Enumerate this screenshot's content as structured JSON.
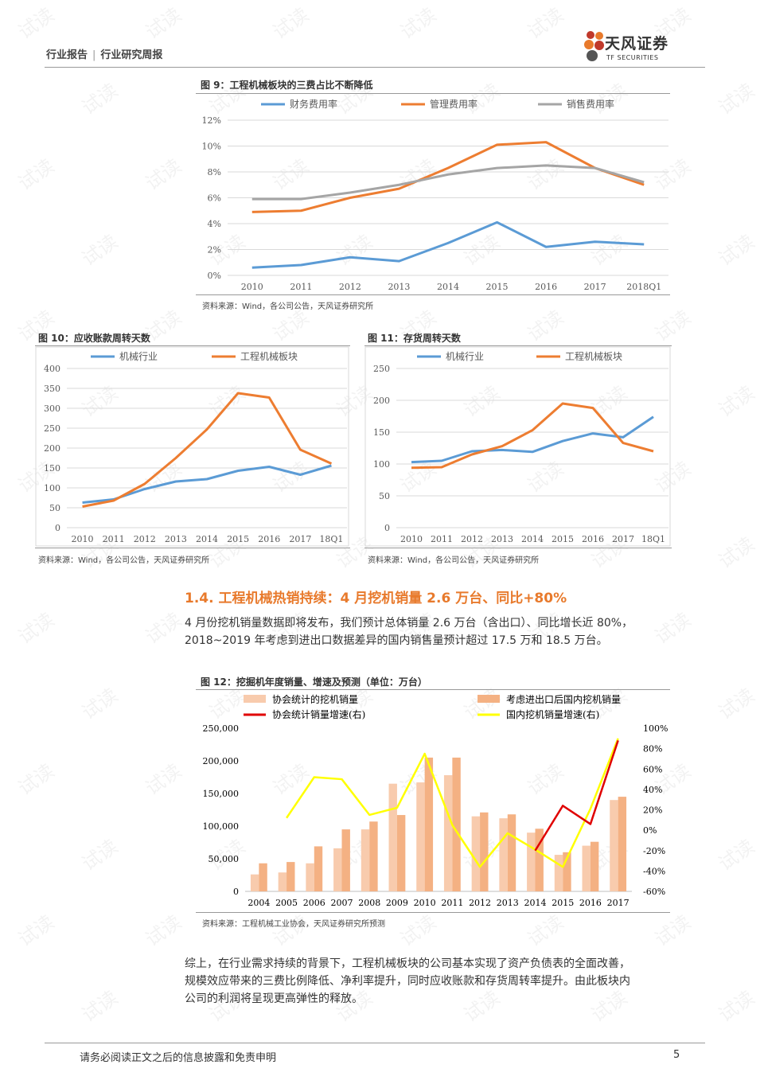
{
  "header": {
    "report_type": "行业报告",
    "report_name": "行业研究周报",
    "logo_cn": "天风证券",
    "logo_en": "TF SECURITIES"
  },
  "watermark": "试读",
  "figures": {
    "fig9": {
      "title": "图 9：工程机械板块的三费占比不断降低",
      "source": "资料来源：Wind，各公司公告，天风证券研究所"
    },
    "fig10": {
      "title": "图 10：应收账款周转天数",
      "source": "资料来源：Wind，各公司公告，天风证券研究所"
    },
    "fig11": {
      "title": "图 11：存货周转天数",
      "source": "资料来源：Wind，各公司公告，天风证券研究所"
    },
    "fig12": {
      "title": "图 12：挖掘机年度销量、增速及预测（单位：万台）",
      "source": "资料来源：工程机械工业协会，天风证券研究所预测"
    }
  },
  "section": {
    "title": "1.4. 工程机械热销持续：4 月挖机销量 2.6 万台、同比+80%",
    "para1_line1": "4 月份挖机销量数据即将发布，我们预计总体销量 2.6 万台（含出口）、同比增长近 80%，",
    "para1_line2": "2018~2019 年考虑到进出口数据差异的国内销售量预计超过 17.5 万和 18.5 万台。",
    "para2_line1": "综上，在行业需求持续的背景下，工程机械板块的公司基本实现了资产负债表的全面改善，",
    "para2_line2": "规模效应带来的三费比例降低、净利率提升，同时应收账款和存货周转率提升。由此板块内",
    "para2_line3": "公司的利润将呈现更高弹性的释放。"
  },
  "footer": {
    "disclaimer": "请务必阅读正文之后的信息披露和免责申明",
    "page": "5"
  },
  "colors": {
    "blue": "#5B9BD5",
    "orange": "#ED7D31",
    "gray": "#A5A5A5",
    "accent": "#E87A2C",
    "bar_light": "#F8CBAD",
    "bar_dark": "#F4B183",
    "red": "#E00000",
    "yellow": "#FFFF00"
  },
  "chart_data": [
    {
      "id": "fig9",
      "type": "line",
      "categories": [
        "2010",
        "2011",
        "2012",
        "2013",
        "2014",
        "2015",
        "2016",
        "2017",
        "2018Q1"
      ],
      "ylim": [
        0,
        12
      ],
      "yticks": [
        "0%",
        "2%",
        "4%",
        "6%",
        "8%",
        "10%",
        "12%"
      ],
      "series": [
        {
          "name": "财务费用率",
          "color": "#5B9BD5",
          "values": [
            0.6,
            0.8,
            1.4,
            1.1,
            2.5,
            4.1,
            2.2,
            2.6,
            2.4
          ]
        },
        {
          "name": "管理费用率",
          "color": "#ED7D31",
          "values": [
            4.9,
            5.0,
            6.0,
            6.7,
            8.3,
            10.1,
            10.3,
            8.3,
            7.0
          ]
        },
        {
          "name": "销售费用率",
          "color": "#A5A5A5",
          "values": [
            5.9,
            5.9,
            6.4,
            7.0,
            7.8,
            8.3,
            8.5,
            8.3,
            7.2
          ]
        }
      ]
    },
    {
      "id": "fig10",
      "type": "line",
      "categories": [
        "2010",
        "2011",
        "2012",
        "2013",
        "2014",
        "2015",
        "2016",
        "2017",
        "18Q1"
      ],
      "ylim": [
        0,
        400
      ],
      "yticks": [
        "0",
        "50",
        "100",
        "150",
        "200",
        "250",
        "300",
        "350",
        "400"
      ],
      "series": [
        {
          "name": "机械行业",
          "color": "#5B9BD5",
          "values": [
            63,
            71,
            97,
            116,
            122,
            143,
            153,
            133,
            156
          ]
        },
        {
          "name": "工程机械板块",
          "color": "#ED7D31",
          "values": [
            53,
            68,
            110,
            175,
            247,
            338,
            327,
            196,
            161
          ]
        }
      ]
    },
    {
      "id": "fig11",
      "type": "line",
      "categories": [
        "2010",
        "2011",
        "2012",
        "2013",
        "2014",
        "2015",
        "2016",
        "2017",
        "18Q1"
      ],
      "ylim": [
        0,
        250
      ],
      "yticks": [
        "0",
        "50",
        "100",
        "150",
        "200",
        "250"
      ],
      "series": [
        {
          "name": "机械行业",
          "color": "#5B9BD5",
          "values": [
            103,
            105,
            120,
            122,
            119,
            136,
            148,
            142,
            174
          ]
        },
        {
          "name": "工程机械板块",
          "color": "#ED7D31",
          "values": [
            94,
            95,
            115,
            128,
            153,
            195,
            188,
            133,
            120
          ]
        }
      ]
    },
    {
      "id": "fig12",
      "type": "bar+line",
      "categories": [
        "2004",
        "2005",
        "2006",
        "2007",
        "2008",
        "2009",
        "2010",
        "2011",
        "2012",
        "2013",
        "2014",
        "2015",
        "2016",
        "2017"
      ],
      "ylim": [
        0,
        250000
      ],
      "yticks": [
        "0",
        "50,000",
        "100,000",
        "150,000",
        "200,000",
        "250,000"
      ],
      "y2lim": [
        -60,
        100
      ],
      "y2ticks": [
        "-60%",
        "-40%",
        "-20%",
        "0%",
        "20%",
        "40%",
        "60%",
        "80%",
        "100%"
      ],
      "bars": [
        {
          "name": "协会统计的挖机销量",
          "color": "#F8CBAD",
          "values": [
            26000,
            29000,
            43000,
            66000,
            95000,
            165000,
            167000,
            178000,
            115000,
            112000,
            90000,
            56000,
            70000,
            140000
          ]
        },
        {
          "name": "考虑进出口后国内挖机销量",
          "color": "#F4B183",
          "values": [
            43000,
            45000,
            69000,
            95000,
            107000,
            117000,
            205000,
            205000,
            121000,
            118000,
            96000,
            60000,
            76000,
            145000
          ]
        }
      ],
      "lines": [
        {
          "name": "协会统计销量增速(右)",
          "color": "#E00000",
          "values": [
            null,
            null,
            null,
            null,
            null,
            null,
            null,
            null,
            null,
            null,
            -20,
            24,
            6,
            88
          ]
        },
        {
          "name": "国内挖机销量增速(右)",
          "color": "#FFFF00",
          "values": [
            null,
            12,
            52,
            50,
            15,
            22,
            75,
            5,
            -36,
            -3,
            -19,
            -36,
            21,
            90
          ]
        }
      ]
    }
  ]
}
